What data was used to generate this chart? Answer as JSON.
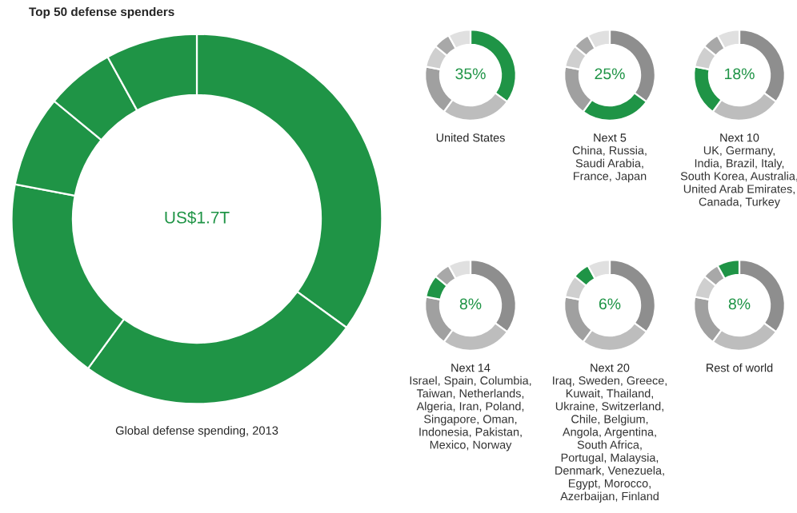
{
  "chart_data": [
    {
      "type": "donut",
      "title": "Top 50 defense spenders",
      "categories": [
        null,
        null,
        null,
        null,
        null,
        null
      ],
      "values": [
        35,
        25,
        18,
        8,
        6,
        8
      ],
      "colors": [
        "#1f9446",
        "#1f9446",
        "#1f9446",
        "#1f9446",
        "#1f9446",
        "#1f9446"
      ],
      "annotations": [
        "US$1.7T",
        "Global defense spending, 2013"
      ]
    },
    {
      "type": "donut",
      "title": "United States",
      "categories": [
        null,
        null,
        null,
        null,
        null,
        null
      ],
      "values": [
        35,
        25,
        18,
        8,
        6,
        8
      ],
      "colors": [
        "#1f9446",
        "#bdbdbd",
        "#a0a0a0",
        "#cfcfcf",
        "#a8a8a8",
        "#e0e0e0"
      ],
      "annotations": [
        "35%"
      ]
    },
    {
      "type": "donut",
      "title": "Next 5",
      "subtitle": "China, Russia,\nSaudi Arabia,\nFrance, Japan",
      "categories": [
        null,
        null,
        null,
        null,
        null,
        null
      ],
      "values": [
        35,
        25,
        18,
        8,
        6,
        8
      ],
      "colors": [
        "#8e8e8e",
        "#1f9446",
        "#a0a0a0",
        "#cfcfcf",
        "#a8a8a8",
        "#e0e0e0"
      ],
      "annotations": [
        "25%"
      ]
    },
    {
      "type": "donut",
      "title": "Next 10",
      "subtitle": "UK, Germany,\nIndia, Brazil, Italy,\nSouth Korea, Australia,\nUnited Arab Emirates,\nCanada, Turkey",
      "categories": [
        null,
        null,
        null,
        null,
        null,
        null
      ],
      "values": [
        35,
        25,
        18,
        8,
        6,
        8
      ],
      "colors": [
        "#8e8e8e",
        "#bdbdbd",
        "#1f9446",
        "#cfcfcf",
        "#a8a8a8",
        "#e0e0e0"
      ],
      "annotations": [
        "18%"
      ]
    },
    {
      "type": "donut",
      "title": "Next 14",
      "subtitle": "Israel, Spain, Columbia,\nTaiwan, Netherlands,\nAlgeria, Iran, Poland,\nSingapore, Oman,\nIndonesia, Pakistan,\nMexico, Norway",
      "categories": [
        null,
        null,
        null,
        null,
        null,
        null
      ],
      "values": [
        35,
        25,
        18,
        8,
        6,
        8
      ],
      "colors": [
        "#8e8e8e",
        "#bdbdbd",
        "#a0a0a0",
        "#1f9446",
        "#a8a8a8",
        "#e0e0e0"
      ],
      "annotations": [
        "8%"
      ]
    },
    {
      "type": "donut",
      "title": "Next 20",
      "subtitle": "Iraq, Sweden, Greece,\nKuwait, Thailand,\nUkraine, Switzerland,\nChile, Belgium,\nAngola, Argentina,\nSouth Africa,\nPortugal, Malaysia,\nDenmark, Venezuela,\nEgypt, Morocco,\nAzerbaijan, Finland",
      "categories": [
        null,
        null,
        null,
        null,
        null,
        null
      ],
      "values": [
        35,
        25,
        18,
        8,
        6,
        8
      ],
      "colors": [
        "#8e8e8e",
        "#bdbdbd",
        "#a0a0a0",
        "#cfcfcf",
        "#1f9446",
        "#e0e0e0"
      ],
      "annotations": [
        "6%"
      ]
    },
    {
      "type": "donut",
      "title": "Rest of world",
      "categories": [
        null,
        null,
        null,
        null,
        null,
        null
      ],
      "values": [
        35,
        25,
        18,
        8,
        6,
        8
      ],
      "colors": [
        "#8e8e8e",
        "#bdbdbd",
        "#a0a0a0",
        "#cfcfcf",
        "#a8a8a8",
        "#1f9446"
      ],
      "annotations": [
        "8%"
      ]
    }
  ]
}
